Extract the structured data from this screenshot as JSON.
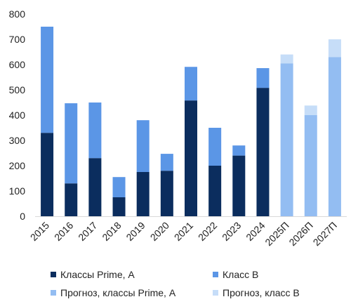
{
  "chart_data": {
    "type": "bar",
    "stacked": true,
    "categories": [
      "2015",
      "2016",
      "2017",
      "2018",
      "2019",
      "2020",
      "2021",
      "2022",
      "2023",
      "2024",
      "2025П",
      "2026П",
      "2027П"
    ],
    "series": [
      {
        "name": "Классы Prime, А",
        "color": "#0b2d5e",
        "values": [
          330,
          130,
          230,
          75,
          175,
          180,
          458,
          200,
          240,
          508,
          null,
          null,
          null
        ]
      },
      {
        "name": "Класс В",
        "color": "#5b96e6",
        "values": [
          420,
          317,
          220,
          80,
          205,
          67,
          133,
          150,
          40,
          78,
          null,
          null,
          null
        ]
      },
      {
        "name": "Прогноз, классы Prime, А",
        "color": "#93bdf2",
        "values": [
          null,
          null,
          null,
          null,
          null,
          null,
          null,
          null,
          null,
          null,
          605,
          400,
          630
        ]
      },
      {
        "name": "Прогноз, класс В",
        "color": "#c6ddf8",
        "values": [
          null,
          null,
          null,
          null,
          null,
          null,
          null,
          null,
          null,
          null,
          35,
          38,
          70
        ]
      }
    ],
    "ylim": [
      0,
      800
    ],
    "yticks": [
      "0",
      "100",
      "200",
      "300",
      "400",
      "500",
      "600",
      "700",
      "800"
    ],
    "grid": false,
    "legend_position": "bottom"
  }
}
